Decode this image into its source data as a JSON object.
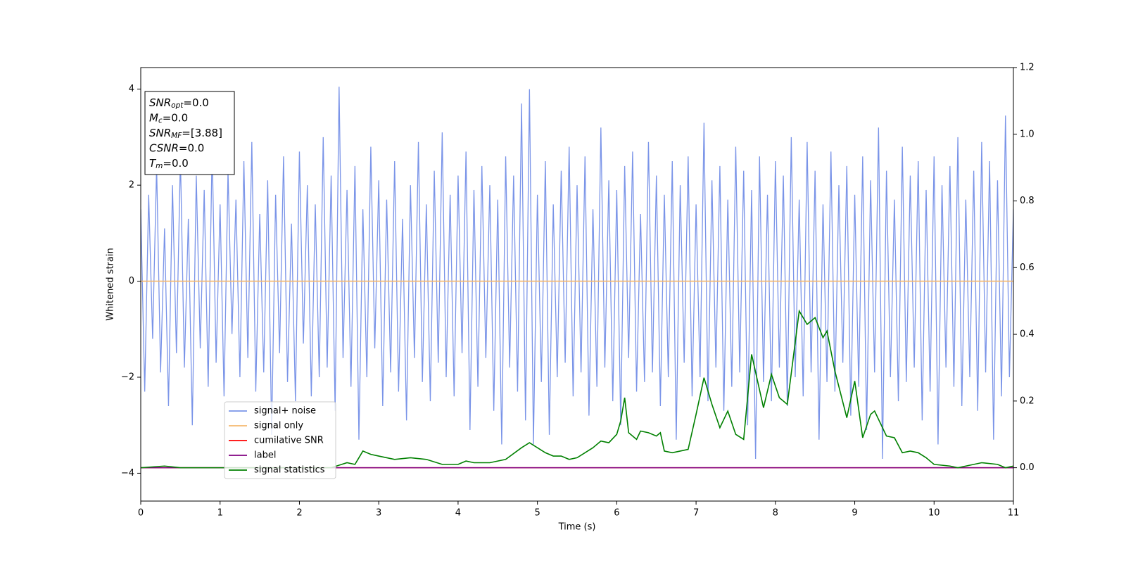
{
  "chart_data": {
    "type": "line",
    "xlabel": "Time (s)",
    "ylabel": "Whitened strain",
    "xlim": [
      0,
      11
    ],
    "xticks": [
      0,
      1,
      2,
      3,
      4,
      5,
      6,
      7,
      8,
      9,
      10,
      11
    ],
    "ylim": [
      -4.58,
      4.45
    ],
    "yticks": [
      {
        "value": -4,
        "label": "−4"
      },
      {
        "value": -2,
        "label": "−2"
      },
      0,
      2,
      4
    ],
    "y2lim": [
      -0.1,
      1.2
    ],
    "y2ticks": [
      {
        "value": 0,
        "label": "0.0"
      },
      {
        "value": 0.2,
        "label": "0.2"
      },
      {
        "value": 0.4,
        "label": "0.4"
      },
      {
        "value": 0.6,
        "label": "0.6"
      },
      {
        "value": 0.8,
        "label": "0.8"
      },
      {
        "value": 1,
        "label": "1.0"
      },
      {
        "value": 1.2,
        "label": "1.2"
      }
    ],
    "annotations": [
      {
        "base": "SNR",
        "sub": "opt",
        "text": "=0.0"
      },
      {
        "base": "M",
        "sub": "c",
        "text": "=0.0"
      },
      {
        "base": "SNR",
        "sub": "MF",
        "text": "=[3.88]"
      },
      {
        "base": "CSNR",
        "text": "=0.0"
      },
      {
        "base": "T",
        "sub": "m",
        "text": "=0.0"
      }
    ],
    "series": [
      {
        "name": "signal+ noise",
        "color": "#7a94e8",
        "x": [
          0,
          0.05,
          0.1,
          0.15,
          0.2,
          0.25,
          0.3,
          0.35,
          0.4,
          0.45,
          0.5,
          0.55,
          0.6,
          0.65,
          0.7,
          0.75,
          0.8,
          0.85,
          0.9,
          0.95,
          1,
          1.05,
          1.1,
          1.15,
          1.2,
          1.25,
          1.3,
          1.35,
          1.4,
          1.45,
          1.5,
          1.55,
          1.6,
          1.65,
          1.7,
          1.75,
          1.8,
          1.85,
          1.9,
          1.95,
          2,
          2.05,
          2.1,
          2.15,
          2.2,
          2.25,
          2.3,
          2.35,
          2.4,
          2.45,
          2.5,
          2.55,
          2.6,
          2.65,
          2.7,
          2.75,
          2.8,
          2.85,
          2.9,
          2.95,
          3,
          3.05,
          3.1,
          3.15,
          3.2,
          3.25,
          3.3,
          3.35,
          3.4,
          3.45,
          3.5,
          3.55,
          3.6,
          3.65,
          3.7,
          3.75,
          3.8,
          3.85,
          3.9,
          3.95,
          4,
          4.05,
          4.1,
          4.15,
          4.2,
          4.25,
          4.3,
          4.35,
          4.4,
          4.45,
          4.5,
          4.55,
          4.6,
          4.65,
          4.7,
          4.75,
          4.8,
          4.85,
          4.9,
          4.95,
          5,
          5.05,
          5.1,
          5.15,
          5.2,
          5.25,
          5.3,
          5.35,
          5.4,
          5.45,
          5.5,
          5.55,
          5.6,
          5.65,
          5.7,
          5.75,
          5.8,
          5.85,
          5.9,
          5.95,
          6,
          6.05,
          6.1,
          6.15,
          6.2,
          6.25,
          6.3,
          6.35,
          6.4,
          6.45,
          6.5,
          6.55,
          6.6,
          6.65,
          6.7,
          6.75,
          6.8,
          6.85,
          6.9,
          6.95,
          7,
          7.05,
          7.1,
          7.15,
          7.2,
          7.25,
          7.3,
          7.35,
          7.4,
          7.45,
          7.5,
          7.55,
          7.6,
          7.65,
          7.7,
          7.75,
          7.8,
          7.85,
          7.9,
          7.95,
          8,
          8.05,
          8.1,
          8.15,
          8.2,
          8.25,
          8.3,
          8.35,
          8.4,
          8.45,
          8.5,
          8.55,
          8.6,
          8.65,
          8.7,
          8.75,
          8.8,
          8.85,
          8.9,
          8.95,
          9,
          9.05,
          9.1,
          9.15,
          9.2,
          9.25,
          9.3,
          9.35,
          9.4,
          9.45,
          9.5,
          9.55,
          9.6,
          9.65,
          9.7,
          9.75,
          9.8,
          9.85,
          9.9,
          9.95,
          10,
          10.05,
          10.1,
          10.15,
          10.2,
          10.25,
          10.3,
          10.35,
          10.4,
          10.45,
          10.5,
          10.55,
          10.6,
          10.65,
          10.7,
          10.75,
          10.8,
          10.85,
          10.9,
          10.95,
          11
        ],
        "values": [
          1.5,
          -2.3,
          1.8,
          -1.2,
          2.4,
          -1.9,
          1.1,
          -2.6,
          2.0,
          -1.5,
          2.6,
          -1.8,
          1.3,
          -3.0,
          2.2,
          -1.4,
          1.9,
          -2.2,
          2.8,
          -1.7,
          1.6,
          -2.4,
          2.3,
          -1.1,
          1.7,
          -2.0,
          2.5,
          -1.6,
          2.9,
          -2.3,
          1.4,
          -1.9,
          2.1,
          -3.2,
          1.8,
          -1.5,
          2.6,
          -2.1,
          1.2,
          -2.5,
          2.7,
          -1.3,
          2.0,
          -2.4,
          1.6,
          -2.0,
          3.0,
          -1.8,
          2.2,
          -2.7,
          4.05,
          -1.6,
          1.9,
          -2.2,
          2.4,
          -3.3,
          1.5,
          -2.0,
          2.8,
          -1.4,
          2.1,
          -2.6,
          1.7,
          -1.9,
          2.5,
          -2.3,
          1.3,
          -2.9,
          2.0,
          -1.6,
          2.9,
          -2.1,
          1.6,
          -2.5,
          2.3,
          -1.7,
          3.1,
          -2.0,
          1.8,
          -2.4,
          2.2,
          -1.5,
          2.7,
          -3.1,
          1.9,
          -2.2,
          2.4,
          -1.6,
          2.0,
          -2.7,
          1.7,
          -3.4,
          2.6,
          -1.8,
          2.2,
          -2.3,
          3.7,
          -2.9,
          4.0,
          -3.4,
          1.8,
          -2.1,
          2.5,
          -3.2,
          1.6,
          -2.0,
          2.3,
          -1.7,
          2.8,
          -2.4,
          2.0,
          -1.9,
          2.6,
          -2.8,
          1.5,
          -2.2,
          3.2,
          -1.8,
          2.1,
          -2.5,
          1.9,
          -3.0,
          2.4,
          -1.6,
          2.7,
          -2.3,
          1.4,
          -2.1,
          2.9,
          -1.9,
          2.2,
          -2.6,
          1.8,
          -2.0,
          2.5,
          -3.3,
          2.0,
          -1.7,
          2.6,
          -2.4,
          1.6,
          -2.0,
          3.3,
          -2.5,
          2.1,
          -1.8,
          2.4,
          -2.7,
          1.7,
          -2.2,
          2.8,
          -1.9,
          2.3,
          -3.0,
          1.9,
          -3.7,
          2.6,
          -2.1,
          1.8,
          -2.5,
          2.5,
          -1.8,
          2.2,
          -2.6,
          3.0,
          -2.0,
          1.7,
          -2.4,
          2.9,
          -1.9,
          2.3,
          -3.3,
          1.6,
          -2.1,
          2.7,
          -2.3,
          2.0,
          -1.7,
          2.4,
          -2.8,
          1.8,
          -2.2,
          2.6,
          -3.1,
          2.1,
          -1.9,
          3.2,
          -3.7,
          2.3,
          -2.0,
          1.7,
          -2.5,
          2.8,
          -2.1,
          2.2,
          -1.8,
          2.5,
          -2.9,
          1.9,
          -2.3,
          2.6,
          -3.4,
          2.0,
          -1.8,
          2.4,
          -2.2,
          3.0,
          -2.6,
          1.7,
          -2.0,
          2.3,
          -2.7,
          2.9,
          -1.9,
          2.5,
          -3.3,
          2.1,
          -2.4,
          3.45,
          -2.0,
          1.5
        ]
      },
      {
        "name": "signal only",
        "color": "#f5b86e",
        "x": [
          0,
          11
        ],
        "values": [
          0,
          0
        ]
      },
      {
        "name": "cumilative SNR",
        "color": "#ff0000",
        "axis": "y2",
        "x": [
          0,
          11
        ],
        "values": [
          0,
          0
        ]
      },
      {
        "name": "label",
        "color": "#800080",
        "axis": "y2",
        "x": [
          0,
          11
        ],
        "values": [
          0,
          0
        ]
      },
      {
        "name": "signal statistics",
        "color": "#008000",
        "axis": "y2",
        "x": [
          0,
          0.3,
          0.5,
          1.0,
          1.5,
          2.0,
          2.4,
          2.6,
          2.7,
          2.8,
          2.9,
          3.0,
          3.2,
          3.4,
          3.6,
          3.8,
          4.0,
          4.1,
          4.2,
          4.4,
          4.6,
          4.8,
          4.9,
          5.0,
          5.1,
          5.2,
          5.3,
          5.4,
          5.5,
          5.6,
          5.7,
          5.8,
          5.9,
          6.0,
          6.05,
          6.1,
          6.15,
          6.25,
          6.3,
          6.4,
          6.5,
          6.55,
          6.6,
          6.7,
          6.8,
          6.9,
          7.0,
          7.1,
          7.2,
          7.3,
          7.4,
          7.5,
          7.6,
          7.7,
          7.85,
          7.95,
          8.05,
          8.15,
          8.3,
          8.4,
          8.5,
          8.6,
          8.65,
          8.75,
          8.9,
          9.0,
          9.1,
          9.2,
          9.25,
          9.4,
          9.5,
          9.6,
          9.7,
          9.8,
          9.9,
          10.0,
          10.2,
          10.3,
          10.4,
          10.6,
          10.8,
          10.9,
          11.0
        ],
        "values": [
          0,
          0.005,
          0,
          0,
          0,
          0,
          0,
          0.015,
          0.01,
          0.05,
          0.04,
          0.035,
          0.025,
          0.03,
          0.025,
          0.01,
          0.01,
          0.02,
          0.015,
          0.015,
          0.025,
          0.06,
          0.075,
          0.06,
          0.045,
          0.035,
          0.035,
          0.025,
          0.03,
          0.045,
          0.06,
          0.08,
          0.075,
          0.1,
          0.14,
          0.21,
          0.105,
          0.085,
          0.11,
          0.105,
          0.095,
          0.105,
          0.05,
          0.045,
          0.05,
          0.055,
          0.16,
          0.27,
          0.19,
          0.12,
          0.17,
          0.1,
          0.085,
          0.34,
          0.18,
          0.28,
          0.21,
          0.19,
          0.47,
          0.43,
          0.45,
          0.39,
          0.41,
          0.29,
          0.15,
          0.26,
          0.09,
          0.16,
          0.17,
          0.095,
          0.09,
          0.045,
          0.05,
          0.045,
          0.03,
          0.01,
          0.005,
          0,
          0.005,
          0.015,
          0.01,
          0,
          0.005
        ]
      }
    ]
  }
}
